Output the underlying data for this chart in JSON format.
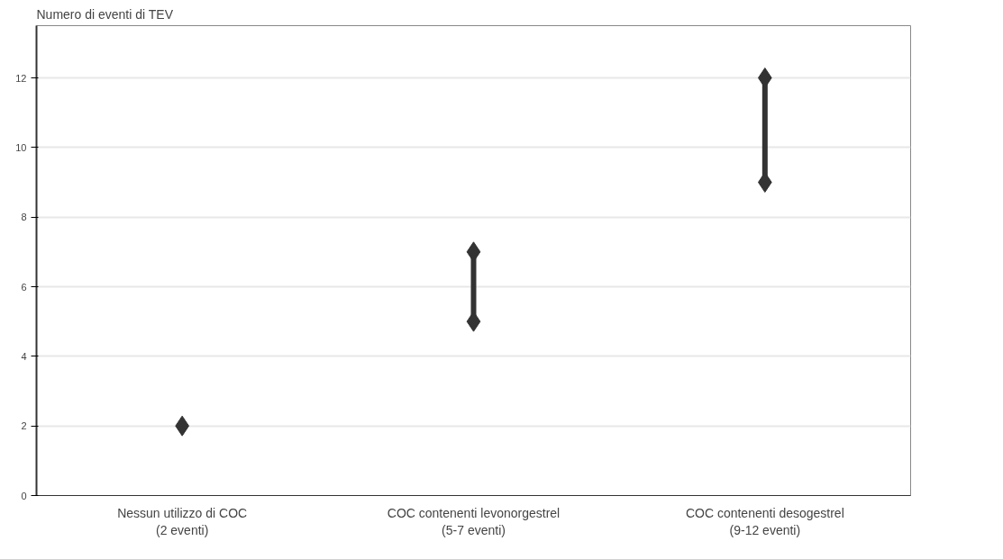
{
  "chart_data": {
    "type": "scatter",
    "ylabel": "Numero di eventi di TEV",
    "categories": [
      "Nessun utilizzo di COC\n(2 eventi)",
      "COC contenenti levonorgestrel\n(5-7 eventi)",
      "COC contenenti desogestrel\n(9-12 eventi)"
    ],
    "series": [
      {
        "type": "line",
        "color": "#333333",
        "x": [
          "COC contenenti levonorgestrel\n(5-7 eventi)",
          "COC contenenti levonorgestrel\n(5-7 eventi)"
        ],
        "values": [
          5,
          7
        ],
        "marker": "none"
      },
      {
        "type": "line",
        "color": "#333333",
        "x": [
          "COC contenenti desogestrel\n(9-12 eventi)",
          "COC contenenti desogestrel\n(9-12 eventi)"
        ],
        "values": [
          9,
          12
        ],
        "marker": "none"
      },
      {
        "color": "#333333",
        "values": [
          2,
          5,
          9
        ]
      },
      {
        "color": "#333333",
        "values": [
          null,
          7,
          12
        ]
      }
    ],
    "marker": "diamond",
    "ylim": [
      0,
      13.5
    ],
    "yticks": [
      0,
      2,
      4,
      6,
      8,
      10,
      12
    ],
    "grid": "y"
  }
}
